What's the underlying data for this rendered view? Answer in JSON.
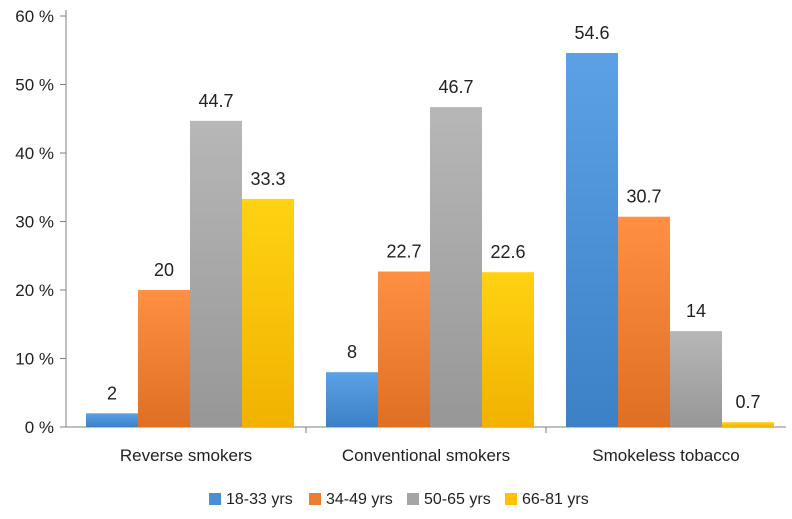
{
  "chart_data": {
    "type": "bar",
    "categories": [
      "Reverse smokers",
      "Conventional smokers",
      "Smokeless tobacco"
    ],
    "series": [
      {
        "name": "18-33 yrs",
        "color": "#4a8fd3",
        "values": [
          2,
          8,
          54.6
        ],
        "labels": [
          "2",
          "8",
          "54.6"
        ]
      },
      {
        "name": "34-49 yrs",
        "color": "#ed7d31",
        "values": [
          20,
          22.7,
          30.7
        ],
        "labels": [
          "20",
          "22.7",
          "30.7"
        ]
      },
      {
        "name": "50-65 yrs",
        "color": "#a5a5a5",
        "values": [
          44.7,
          46.7,
          14
        ],
        "labels": [
          "44.7",
          "46.7",
          "14"
        ]
      },
      {
        "name": "66-81 yrs",
        "color": "#ffc000",
        "values": [
          33.3,
          22.6,
          0.7
        ],
        "labels": [
          "33.3",
          "22.6",
          "0.7"
        ]
      }
    ],
    "y_ticks": [
      {
        "value": 0,
        "label": "0 %"
      },
      {
        "value": 10,
        "label": "10 %"
      },
      {
        "value": 20,
        "label": "20 %"
      },
      {
        "value": 30,
        "label": "30 %"
      },
      {
        "value": 40,
        "label": "40 %"
      },
      {
        "value": 50,
        "label": "50 %"
      },
      {
        "value": 60,
        "label": "60 %"
      }
    ],
    "ylim": [
      0,
      60
    ],
    "grid": false,
    "legend_position": "bottom",
    "title": "",
    "xlabel": "",
    "ylabel": ""
  }
}
